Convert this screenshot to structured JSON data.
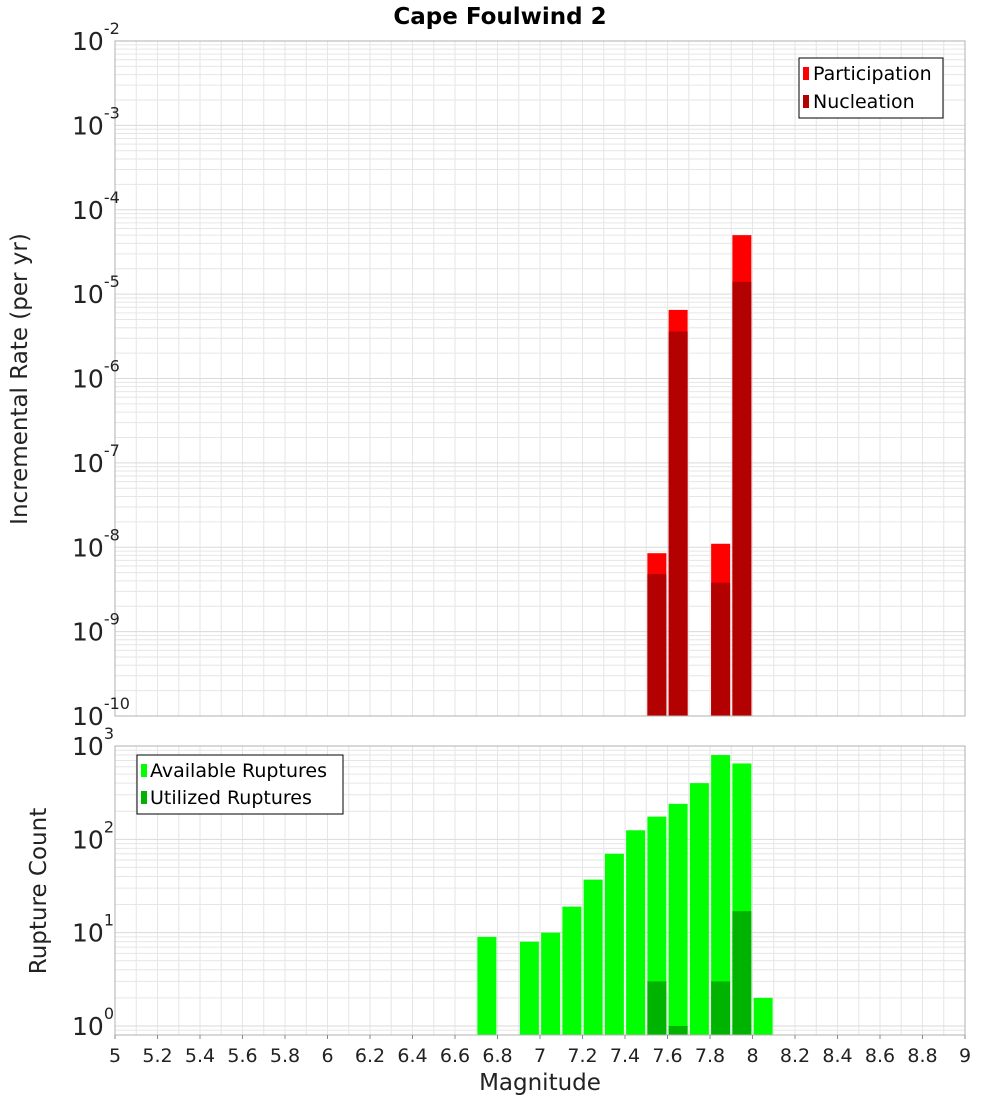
{
  "title": "Cape Foulwind 2",
  "xlabel": "Magnitude",
  "x_ticks": [
    "5",
    "5.2",
    "5.4",
    "5.6",
    "5.8",
    "6",
    "6.2",
    "6.4",
    "6.6",
    "6.8",
    "7",
    "7.2",
    "7.4",
    "7.6",
    "7.8",
    "8",
    "8.2",
    "8.4",
    "8.6",
    "8.8",
    "9"
  ],
  "colors": {
    "participation": "#ff0000",
    "nucleation": "#b30000",
    "available": "#00ff00",
    "utilized": "#00b300",
    "grid": "#e6e6e6",
    "frame": "#b0b0b0"
  },
  "chart_data": [
    {
      "type": "bar",
      "title": "Cape Foulwind 2",
      "xlabel": "Magnitude",
      "ylabel": "Incremental Rate (per yr)",
      "xlim": [
        5,
        9
      ],
      "ylim": [
        1e-10,
        0.01
      ],
      "y_scale": "log",
      "y_ticks": [
        {
          "base": "10",
          "exp": "-10"
        },
        {
          "base": "10",
          "exp": "-9"
        },
        {
          "base": "10",
          "exp": "-8"
        },
        {
          "base": "10",
          "exp": "-7"
        },
        {
          "base": "10",
          "exp": "-6"
        },
        {
          "base": "10",
          "exp": "-5"
        },
        {
          "base": "10",
          "exp": "-4"
        },
        {
          "base": "10",
          "exp": "-3"
        },
        {
          "base": "10",
          "exp": "-2"
        }
      ],
      "grid": true,
      "legend": "top-right",
      "series": [
        {
          "name": "Participation",
          "x": [
            7.55,
            7.65,
            7.85,
            7.95
          ],
          "values": [
            8.5e-09,
            6.5e-06,
            1.1e-08,
            5e-05
          ]
        },
        {
          "name": "Nucleation",
          "x": [
            7.55,
            7.65,
            7.85,
            7.95
          ],
          "values": [
            4.8e-09,
            3.6e-06,
            3.8e-09,
            1.4e-05
          ]
        }
      ]
    },
    {
      "type": "bar",
      "xlabel": "Magnitude",
      "ylabel": "Rupture Count",
      "xlim": [
        5,
        9
      ],
      "ylim": [
        0.8,
        1000
      ],
      "y_scale": "log",
      "y_ticks": [
        {
          "base": "10",
          "exp": "0"
        },
        {
          "base": "10",
          "exp": "1"
        },
        {
          "base": "10",
          "exp": "2"
        },
        {
          "base": "10",
          "exp": "3"
        }
      ],
      "grid": true,
      "legend": "top-left",
      "series": [
        {
          "name": "Available Ruptures",
          "x": [
            6.75,
            6.95,
            7.05,
            7.15,
            7.25,
            7.35,
            7.45,
            7.55,
            7.65,
            7.75,
            7.85,
            7.95,
            8.05
          ],
          "values": [
            9,
            8,
            10,
            19,
            37,
            70,
            125,
            175,
            240,
            400,
            800,
            650,
            2
          ]
        },
        {
          "name": "Utilized Ruptures",
          "x": [
            7.55,
            7.65,
            7.85,
            7.95
          ],
          "values": [
            3,
            1,
            3,
            17
          ]
        }
      ]
    }
  ]
}
